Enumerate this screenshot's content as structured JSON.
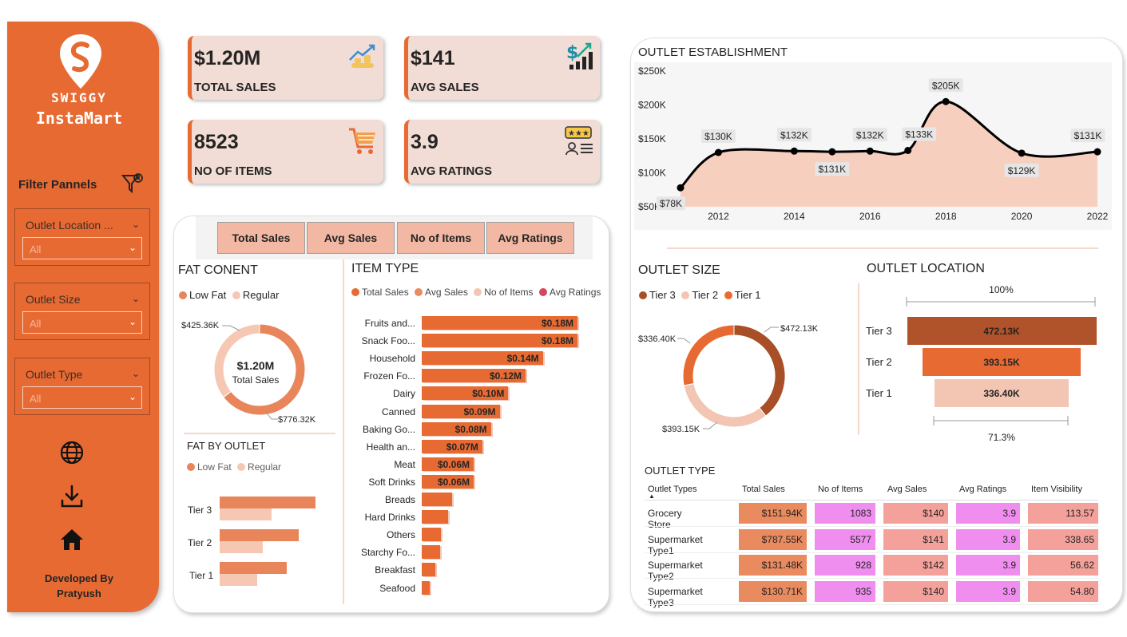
{
  "brand": {
    "name": "SWIGGY",
    "sub": "InstaMart"
  },
  "filters": {
    "title": "Filter Pannels",
    "slicers": [
      {
        "label": "Outlet Location ...",
        "value": "All"
      },
      {
        "label": "Outlet Size",
        "value": "All"
      },
      {
        "label": "Outlet Type",
        "value": "All"
      }
    ]
  },
  "developer": {
    "line1": "Developed By",
    "line2": "Pratyush"
  },
  "kpis": [
    {
      "value": "$1.20M",
      "label": "TOTAL SALES",
      "icon": "sales-growth-icon"
    },
    {
      "value": "$141",
      "label": "AVG SALES",
      "icon": "dollar-chart-icon"
    },
    {
      "value": "8523",
      "label": "NO OF ITEMS",
      "icon": "shopping-cart-icon"
    },
    {
      "value": "3.9",
      "label": "AVG RATINGS",
      "icon": "rating-icon"
    }
  ],
  "metric_buttons": [
    "Total Sales",
    "Avg Sales",
    "No of Items",
    "Avg Ratings"
  ],
  "fat_content": {
    "title": "FAT CONENT",
    "legend": [
      "Low Fat",
      "Regular"
    ],
    "center_value": "$1.20M",
    "center_label": "Total Sales",
    "label_regular": "$425.36K",
    "label_lowfat": "$776.32K"
  },
  "fat_by_outlet": {
    "title": "FAT BY OUTLET",
    "legend": [
      "Low Fat",
      "Regular"
    ],
    "tiers": [
      "Tier 3",
      "Tier 2",
      "Tier 1"
    ]
  },
  "item_type": {
    "title": "ITEM TYPE",
    "legend": [
      "Total Sales",
      "Avg Sales",
      "No of Items",
      "Avg Ratings"
    ]
  },
  "outlet_establishment": {
    "title": "OUTLET ESTABLISHMENT"
  },
  "outlet_size": {
    "title": "OUTLET SIZE",
    "legend": [
      "Tier 3",
      "Tier 2",
      "Tier 1"
    ],
    "label_a": "$472.13K",
    "label_b": "$336.40K",
    "label_c": "$393.15K"
  },
  "outlet_location": {
    "title": "OUTLET LOCATION",
    "top_pct": "100%",
    "bottom_pct": "71.3%"
  },
  "outlet_type": {
    "title": "OUTLET TYPE",
    "headers": [
      "Outlet Types",
      "Total Sales",
      "No of Items",
      "Avg Sales",
      "Avg Ratings",
      "Item Visibility"
    ],
    "rows": [
      [
        "Grocery Store",
        "$151.94K",
        "1083",
        "$140",
        "3.9",
        "113.57"
      ],
      [
        "Supermarket Type1",
        "$787.55K",
        "5577",
        "$141",
        "3.9",
        "338.65"
      ],
      [
        "Supermarket Type2",
        "$131.48K",
        "928",
        "$142",
        "3.9",
        "56.62"
      ],
      [
        "Supermarket Type3",
        "$130.71K",
        "935",
        "$140",
        "3.9",
        "54.80"
      ]
    ]
  },
  "colors": {
    "accent": "#e86a33",
    "light": "#f3c5b3",
    "dark": "#b0522a",
    "pink": "#f08ef0",
    "salmon": "#f4a19b"
  },
  "chart_data": [
    {
      "type": "bar",
      "title": "ITEM TYPE",
      "categories": [
        "Fruits and...",
        "Snack Foo...",
        "Household",
        "Frozen Fo...",
        "Dairy",
        "Canned",
        "Baking Go...",
        "Health an...",
        "Meat",
        "Soft Drinks",
        "Breads",
        "Hard Drinks",
        "Others",
        "Starchy Fo...",
        "Breakfast",
        "Seafood"
      ],
      "values": [
        0.18,
        0.18,
        0.14,
        0.12,
        0.1,
        0.09,
        0.08,
        0.07,
        0.06,
        0.06,
        0.035,
        0.03,
        0.022,
        0.021,
        0.016,
        0.009
      ],
      "value_labels": [
        "$0.18M",
        "$0.18M",
        "$0.14M",
        "$0.12M",
        "$0.10M",
        "$0.09M",
        "$0.08M",
        "$0.07M",
        "$0.06M",
        "$0.06M",
        "",
        "",
        "",
        "",
        "",
        ""
      ]
    },
    {
      "type": "area",
      "title": "OUTLET ESTABLISHMENT",
      "x": [
        2011,
        2012,
        2014,
        2015,
        2016,
        2017,
        2018,
        2020,
        2022
      ],
      "values": [
        78,
        130,
        132,
        131,
        132,
        133,
        205,
        129,
        131
      ],
      "value_labels": [
        "$78K",
        "$130K",
        "$132K",
        "$131K",
        "$132K",
        "$133K",
        "$205K",
        "$129K",
        "$131K"
      ],
      "xticks": [
        "2012",
        "2014",
        "2016",
        "2018",
        "2020",
        "2022"
      ],
      "yticks": [
        "$50K",
        "$100K",
        "$150K",
        "$200K",
        "$250K"
      ],
      "ylim": [
        50,
        250
      ]
    },
    {
      "type": "pie",
      "title": "FAT CONENT",
      "labels": [
        "Low Fat",
        "Regular"
      ],
      "values": [
        776.32,
        425.36
      ]
    },
    {
      "type": "pie",
      "title": "OUTLET SIZE",
      "labels": [
        "Tier 3",
        "Tier 2",
        "Tier 1"
      ],
      "values": [
        472.13,
        393.15,
        336.4
      ]
    },
    {
      "type": "bar",
      "title": "FAT BY OUTLET",
      "categories": [
        "Tier 3",
        "Tier 2",
        "Tier 1"
      ],
      "series": [
        {
          "name": "Low Fat",
          "values": [
            306,
            254,
            215
          ]
        },
        {
          "name": "Regular",
          "values": [
            166,
            139,
            121
          ]
        }
      ]
    },
    {
      "type": "bar",
      "title": "OUTLET LOCATION",
      "categories": [
        "Tier 3",
        "Tier 2",
        "Tier 1"
      ],
      "values": [
        472.13,
        393.15,
        336.4
      ],
      "value_labels": [
        "472.13K",
        "393.15K",
        "336.40K"
      ]
    }
  ]
}
